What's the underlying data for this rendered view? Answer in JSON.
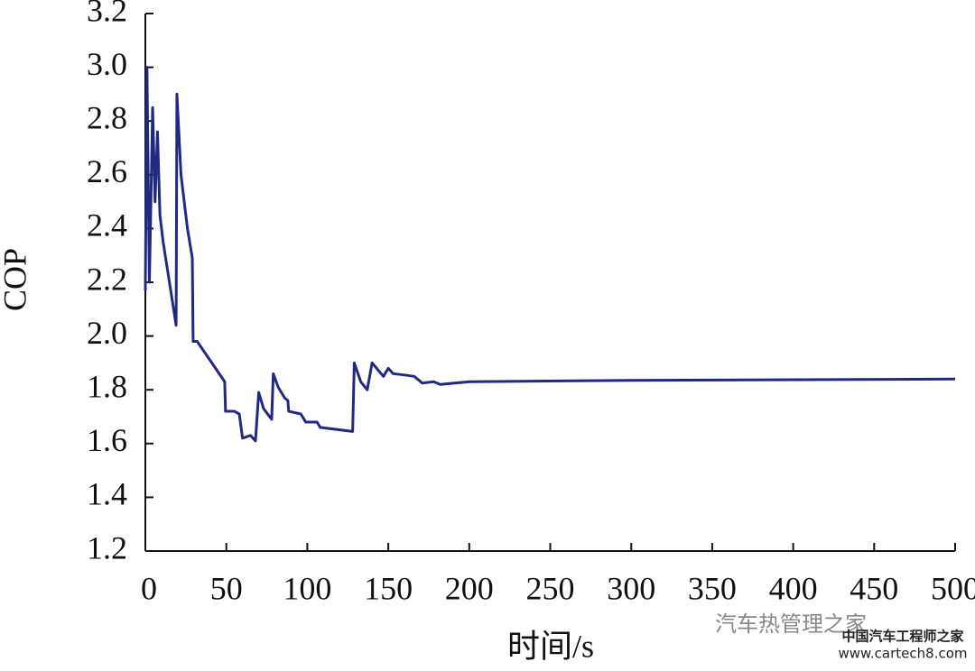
{
  "chart_data": {
    "type": "line",
    "x_label": "时间/s",
    "y_label": "COP",
    "x": [
      0,
      1,
      2.5,
      4.5,
      6,
      7.5,
      9,
      11,
      19,
      19.5,
      22,
      26,
      29,
      29.5,
      32,
      49,
      49.5,
      55,
      58,
      60,
      65,
      68,
      70,
      73,
      78,
      79,
      82,
      86,
      88,
      88.5,
      96,
      99,
      106,
      108,
      128,
      129,
      133,
      137,
      140,
      147,
      150,
      153,
      160,
      166,
      171,
      178,
      182,
      200,
      300,
      500
    ],
    "series": [
      {
        "name": "COP",
        "color": "#1f2a80",
        "values": [
          2.17,
          3.0,
          2.2,
          2.85,
          2.5,
          2.76,
          2.45,
          2.35,
          2.04,
          2.9,
          2.6,
          2.4,
          2.29,
          1.98,
          1.98,
          1.83,
          1.72,
          1.72,
          1.71,
          1.62,
          1.63,
          1.61,
          1.79,
          1.73,
          1.69,
          1.86,
          1.81,
          1.77,
          1.76,
          1.72,
          1.71,
          1.68,
          1.68,
          1.66,
          1.645,
          1.9,
          1.83,
          1.8,
          1.9,
          1.85,
          1.88,
          1.86,
          1.855,
          1.85,
          1.825,
          1.83,
          1.82,
          1.83,
          1.835,
          1.84
        ]
      }
    ],
    "xlim": [
      0,
      500
    ],
    "xticks": [
      0,
      50,
      100,
      150,
      200,
      250,
      300,
      350,
      400,
      450,
      500
    ],
    "ylim": [
      1.2,
      3.2
    ],
    "yticks": [
      1.2,
      1.4,
      1.6,
      1.8,
      {
        "value": 2,
        "label": "2.0"
      },
      2.2,
      2.4,
      2.6,
      2.8,
      {
        "value": 3,
        "label": "3.0"
      },
      3.2
    ]
  },
  "watermark": {
    "text": "汽车热管理之家",
    "site_name": "中国汽车工程师之家",
    "url": "www.cartech8.com"
  }
}
